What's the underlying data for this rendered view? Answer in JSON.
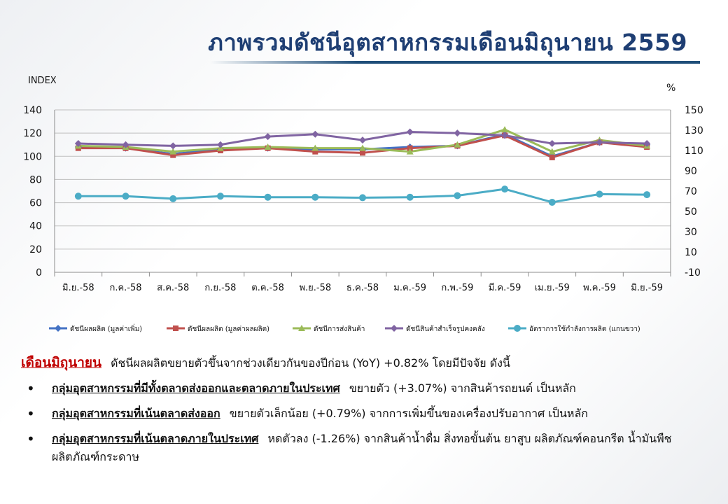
{
  "header": {
    "title": "ภาพรวมดัชนีอุตสาหกรรมเดือนมิถุนายน  2559"
  },
  "chart_data": {
    "type": "line",
    "left_axis": {
      "label": "INDEX",
      "ylim": [
        0,
        140
      ],
      "ticks": [
        0,
        20,
        40,
        60,
        80,
        100,
        120,
        140
      ]
    },
    "right_axis": {
      "label": "%",
      "ylim": [
        -10,
        150
      ],
      "ticks": [
        -10,
        10,
        30,
        50,
        70,
        90,
        110,
        130,
        150
      ]
    },
    "categories": [
      "มิ.ย.-58",
      "ก.ค.-58",
      "ส.ค.-58",
      "ก.ย.-58",
      "ต.ค.-58",
      "พ.ย.-58",
      "ธ.ค.-58",
      "ม.ค.-59",
      "ก.พ.-59",
      "มี.ค.-59",
      "เม.ย.-59",
      "พ.ค.-59",
      "มิ.ย.-59"
    ],
    "grid": true,
    "legend": "bottom",
    "series": [
      {
        "name": "ดัชนีผลผลิต (มูลค่าเพิ่ม)",
        "axis": "left",
        "color": "#4472c4",
        "marker": "diamond",
        "values": [
          108,
          107,
          102,
          106,
          107,
          106,
          106,
          108,
          109,
          119,
          100,
          112,
          110
        ]
      },
      {
        "name": "ดัชนีผลผลิต (มูลค่าผลผลิต)",
        "axis": "left",
        "color": "#c0504d",
        "marker": "square",
        "values": [
          107,
          107,
          101,
          105,
          107,
          104,
          103,
          107,
          109,
          118,
          99,
          112,
          108
        ]
      },
      {
        "name": "ดัชนีการส่งสินค้า",
        "axis": "left",
        "color": "#9bbb59",
        "marker": "triangle",
        "values": [
          109,
          108,
          104,
          107,
          108,
          107,
          107,
          104,
          110,
          123,
          104,
          114,
          109
        ]
      },
      {
        "name": "ดัชนีสินค้าสำเร็จรูปคงคลัง",
        "axis": "left",
        "color": "#8064a2",
        "marker": "diamond",
        "values": [
          111,
          110,
          109,
          110,
          117,
          119,
          114,
          121,
          120,
          118,
          111,
          112,
          111
        ]
      },
      {
        "name": "อัตราการใช้กำลังการผลิต (แกนขวา)",
        "axis": "right",
        "color": "#4bacc6",
        "marker": "circle",
        "values": [
          65,
          65,
          62.5,
          65,
          64,
          64,
          63.5,
          64,
          65.5,
          72,
          59,
          67,
          66.5
        ]
      }
    ]
  },
  "summary": {
    "lead_key": "เดือนมิถุนายน",
    "lead_text": "ดัชนีผลผลิตขยายตัวขึ้นจากช่วงเดียวกันของปีก่อน  (YoY) +0.82% โดยมีปัจจัย  ดังนี้",
    "bullets": [
      {
        "group": "กลุ่มอุตสาหกรรมที่มีทั้งตลาดส่งออกและตลาดภายในประเทศ",
        "text": "ขยายตัว (+3.07%) จากสินค้ารถยนต์  เป็นหลัก"
      },
      {
        "group": "กลุ่มอุตสาหกรรมที่เน้นตลาดส่งออก",
        "text": "ขยายตัวเล็กน้อย (+0.79%) จากการเพิ่มขึ้นของเครื่องปรับอากาศ เป็นหลัก"
      },
      {
        "group": "กลุ่มอุตสาหกรรมที่เน้นตลาดภายในประเทศ",
        "text": "หดตัวลง (-1.26%)  จากสินค้าน้ำดื่ม  สิ่งทอขั้นต้น  ยาสูบ  ผลิตภัณฑ์คอนกรีต น้ำมันพืช  ผลิตภัณฑ์กระดาษ"
      }
    ]
  }
}
